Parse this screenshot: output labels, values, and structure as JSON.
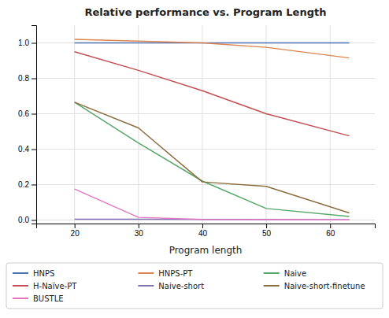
{
  "chart_data": {
    "type": "line",
    "title": "Relative performance vs. Program Length",
    "xlabel": "Program length",
    "x": [
      20,
      30,
      40,
      50,
      63
    ],
    "series": [
      {
        "name": "HNPS",
        "color": "#4c72b0",
        "values": [
          1.0,
          1.0,
          1.0,
          1.0,
          1.0
        ]
      },
      {
        "name": "HNPS-PT",
        "color": "#dd8452",
        "values": [
          1.02,
          1.01,
          1.0,
          0.975,
          0.915
        ]
      },
      {
        "name": "Naive",
        "color": "#55a868",
        "values": [
          0.665,
          0.435,
          0.22,
          0.065,
          0.02
        ]
      },
      {
        "name": "H-Naïve-PT",
        "color": "#c44e52",
        "values": [
          0.95,
          0.845,
          0.73,
          0.6,
          0.475
        ]
      },
      {
        "name": "Naive-short",
        "color": "#8172b2",
        "values": [
          0.005,
          0.005,
          0.003,
          0.002,
          0.001
        ]
      },
      {
        "name": "Naive-short-finetune",
        "color": "#8c6d3f",
        "values": [
          0.665,
          0.52,
          0.215,
          0.19,
          0.04
        ]
      },
      {
        "name": "BUSTLE",
        "color": "#e377c2",
        "values": [
          0.175,
          0.015,
          0.003,
          0.002,
          0.001
        ]
      }
    ],
    "xlim": [
      14,
      67
    ],
    "ylim": [
      -0.02,
      1.1
    ],
    "xticks": [
      20,
      30,
      40,
      50,
      60
    ],
    "yticks": [
      {
        "value": 0.0,
        "label": "0.0"
      },
      0.2,
      0.4,
      0.6,
      0.8,
      {
        "value": 1.0,
        "label": "1.0"
      }
    ],
    "grid": true,
    "legend": "bottom"
  }
}
